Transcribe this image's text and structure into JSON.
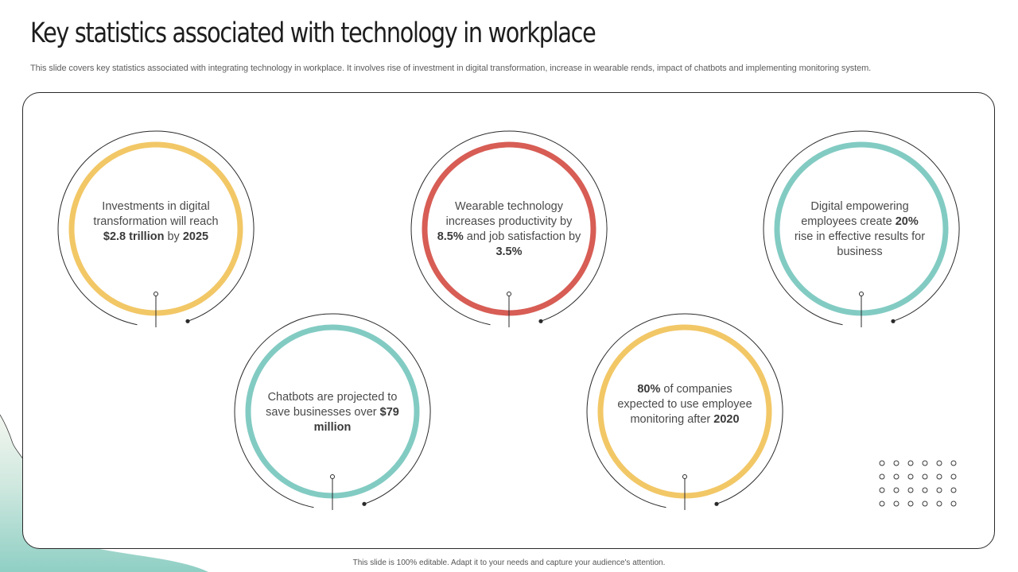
{
  "title": "Key statistics associated with technology in workplace",
  "subtitle": "This slide covers key statistics associated with integrating technology in workplace. It involves rise of investment in digital transformation, increase in wearable rends, impact of chatbots and implementing monitoring system.",
  "colors": {
    "yellow": "#F2C766",
    "red": "#D75D55",
    "teal": "#82CBC3",
    "bg_accent": "#8FCFC4"
  },
  "stats": [
    {
      "color": "yellow",
      "before": "Investments  in digital transformation will reach ",
      "highlight": "$2.8 trillion",
      "middle": " by ",
      "highlight2": "2025",
      "after": ""
    },
    {
      "color": "red",
      "before": "Wearable technology increases productivity by ",
      "highlight": "8.5%",
      "middle": " and job satisfaction by ",
      "highlight2": "3.5%",
      "after": ""
    },
    {
      "color": "teal",
      "before": "Digital empowering employees create ",
      "highlight": "20%",
      "middle": " rise in effective results for business",
      "highlight2": "",
      "after": ""
    },
    {
      "color": "teal",
      "before": "Chatbots are projected to save businesses over ",
      "highlight": "$79 million",
      "middle": "",
      "highlight2": "",
      "after": ""
    },
    {
      "color": "yellow",
      "before": "",
      "highlight": "80%",
      "middle": " of companies expected to use employee monitoring after ",
      "highlight2": "2020",
      "after": ""
    }
  ],
  "footer": "This slide is 100% editable.  Adapt it to your needs and capture your audience's attention."
}
